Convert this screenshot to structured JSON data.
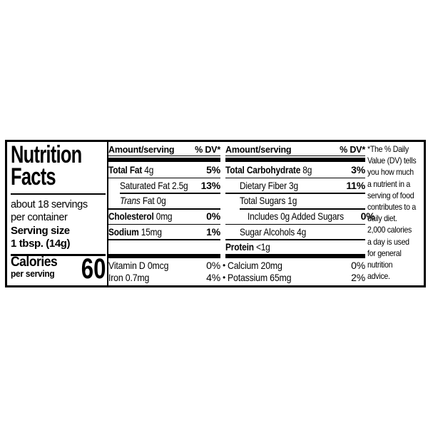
{
  "page": {
    "background": "#ffffff",
    "label_border_color": "#000000",
    "text_color": "#000000"
  },
  "label": {
    "left": {
      "title": "Nutrition\nFacts",
      "servings": "about 18 servings\nper container",
      "serving_size": "Serving size\n1 tbsp. (14g)",
      "calories_label": "Calories",
      "calories_sub": "per serving",
      "calories_value": "60"
    },
    "columns": [
      {
        "header": {
          "amount": "Amount/serving",
          "dv": "% DV*"
        },
        "rows": [
          {
            "parts": [
              {
                "text": "Total Fat",
                "bold": true
              },
              {
                "text": " 4g"
              }
            ],
            "dv": "5%",
            "indent": 0,
            "hr": null
          },
          {
            "parts": [
              {
                "text": "Saturated Fat 2.5g"
              }
            ],
            "dv": "13%",
            "indent": 16,
            "hr": {
              "indent": 0
            }
          },
          {
            "parts": [
              {
                "text": "Trans",
                "italic": true
              },
              {
                "text": " Fat 0g"
              }
            ],
            "dv": "",
            "indent": 16,
            "hr": {
              "indent": 16
            }
          },
          {
            "parts": [
              {
                "text": "Cholesterol",
                "bold": true
              },
              {
                "text": " 0mg"
              }
            ],
            "dv": "0%",
            "indent": 0,
            "hr": {
              "indent": 0
            }
          },
          {
            "parts": [
              {
                "text": "Sodium",
                "bold": true
              },
              {
                "text": " 15mg"
              }
            ],
            "dv": "1%",
            "indent": 0,
            "hr": {
              "indent": 0
            }
          },
          {
            "parts": [],
            "dv": "",
            "indent": 0,
            "hr": {
              "indent": 0
            },
            "spacer": true
          }
        ]
      },
      {
        "header": {
          "amount": "Amount/serving",
          "dv": "% DV*"
        },
        "rows": [
          {
            "parts": [
              {
                "text": "Total Carbohydrate",
                "bold": true
              },
              {
                "text": " 8g"
              }
            ],
            "dv": "3%",
            "indent": 0,
            "hr": null
          },
          {
            "parts": [
              {
                "text": "Dietary Fiber 3g"
              }
            ],
            "dv": "11%",
            "indent": 20,
            "hr": {
              "indent": 0
            }
          },
          {
            "parts": [
              {
                "text": "Total Sugars 1g"
              }
            ],
            "dv": "",
            "indent": 20,
            "hr": {
              "indent": 0
            }
          },
          {
            "parts": [
              {
                "text": "Includes 0g Added Sugars"
              }
            ],
            "dv": "0%",
            "indent": 31,
            "hr": {
              "indent": 20
            }
          },
          {
            "parts": [
              {
                "text": "Sugar Alcohols 4g"
              }
            ],
            "dv": "",
            "indent": 20,
            "hr": {
              "indent": 0
            }
          },
          {
            "parts": [
              {
                "text": "Protein",
                "bold": true
              },
              {
                "text": " <1g"
              }
            ],
            "dv": "",
            "indent": 0,
            "hr": {
              "indent": 0
            }
          }
        ]
      }
    ],
    "micros": [
      {
        "left_label": "Vitamin D 0mcg",
        "left_dv": "0%",
        "right_label": "Calcium 20mg",
        "right_dv": "0%"
      },
      {
        "left_label": "Iron 0.7mg",
        "left_dv": "4%",
        "right_label": "Potassium 65mg",
        "right_dv": "2%"
      }
    ],
    "bullet": "•",
    "footnote": "*The % Daily\nValue (DV) tells\nyou how much\na nutrient in a\nserving of food\ncontributes to a\ndaily diet.\n2,000 calories\na day is used\nfor general\nnutrition\nadvice."
  }
}
